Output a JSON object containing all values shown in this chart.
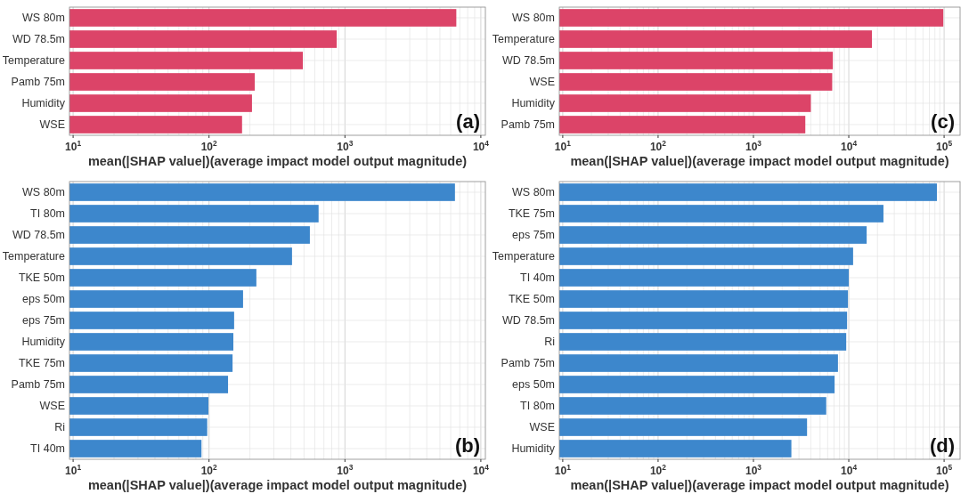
{
  "chart_data": [
    {
      "type": "bar",
      "orientation": "horizontal",
      "log": "x",
      "grid": true,
      "categories": [
        "WS 80m",
        "WD 78.5m",
        "Temperature",
        "Pamb 75m",
        "Humidity",
        "WSE"
      ],
      "values": [
        6600,
        870,
        490,
        217,
        207,
        175
      ],
      "color": "#dc4468",
      "xlim": [
        9.4,
        10800
      ],
      "xticks": [
        {
          "value": 10,
          "label": "10$^{1}$"
        },
        {
          "value": 100,
          "label": "10$^{2}$"
        },
        {
          "value": 1000,
          "label": "10$^{3}$"
        },
        {
          "value": 10000,
          "label": "10$^{4}$"
        }
      ],
      "xlabel": "mean(|SHAP value|)(average impact model output magnitude)",
      "annotations": [
        "(a)"
      ]
    },
    {
      "type": "bar",
      "orientation": "horizontal",
      "log": "x",
      "grid": true,
      "categories": [
        "WS 80m",
        "Temperature",
        "WD 78.5m",
        "WSE",
        "Humidity",
        "Pamb 75m"
      ],
      "values": [
        98000,
        17500,
        6800,
        6700,
        4000,
        3500
      ],
      "color": "#dc4468",
      "xlim": [
        9.2,
        147000
      ],
      "xticks": [
        {
          "value": 10,
          "label": "10$^{1}$"
        },
        {
          "value": 100,
          "label": "10$^{2}$"
        },
        {
          "value": 1000,
          "label": "10$^{3}$"
        },
        {
          "value": 10000,
          "label": "10$^{4}$"
        },
        {
          "value": 100000,
          "label": "10$^{5}$"
        }
      ],
      "xlabel": "mean(|SHAP value|)(average impact model output magnitude)",
      "annotations": [
        "(c)"
      ]
    },
    {
      "type": "bar",
      "orientation": "horizontal",
      "log": "x",
      "grid": true,
      "categories": [
        "WS 80m",
        "TI 80m",
        "WD 78.5m",
        "Temperature",
        "TKE 50m",
        "eps 50m",
        "eps 75m",
        "Humidity",
        "TKE 75m",
        "Pamb 75m",
        "WSE",
        "Ri",
        "TI 40m"
      ],
      "values": [
        6450,
        640,
        552,
        408,
        223,
        178,
        153,
        151,
        149,
        138,
        99,
        97,
        88
      ],
      "color": "#3d87cc",
      "xlim": [
        9.4,
        10800
      ],
      "xticks": [
        {
          "value": 10,
          "label": "10$^{1}$"
        },
        {
          "value": 100,
          "label": "10$^{2}$"
        },
        {
          "value": 1000,
          "label": "10$^{3}$"
        },
        {
          "value": 10000,
          "label": "10$^{4}$"
        }
      ],
      "xlabel": "mean(|SHAP value|)(average impact model output magnitude)",
      "annotations": [
        "(b)"
      ]
    },
    {
      "type": "bar",
      "orientation": "horizontal",
      "log": "x",
      "grid": true,
      "categories": [
        "WS 80m",
        "TKE 75m",
        "eps 75m",
        "Temperature",
        "TI 40m",
        "TKE 50m",
        "WD 78.5m",
        "Ri",
        "Pamb 75m",
        "eps 50m",
        "TI 80m",
        "WSE",
        "Humidity"
      ],
      "values": [
        84000,
        23100,
        15400,
        11100,
        10000,
        9800,
        9600,
        9400,
        7700,
        7100,
        5800,
        3650,
        2500
      ],
      "color": "#3d87cc",
      "xlim": [
        9.2,
        147000
      ],
      "xticks": [
        {
          "value": 10,
          "label": "10$^{1}$"
        },
        {
          "value": 100,
          "label": "10$^{2}$"
        },
        {
          "value": 1000,
          "label": "10$^{3}$"
        },
        {
          "value": 10000,
          "label": "10$^{4}$"
        },
        {
          "value": 100000,
          "label": "10$^{5}$"
        }
      ],
      "xlabel": "mean(|SHAP value|)(average impact model output magnitude)",
      "annotations": [
        "(d)"
      ]
    }
  ]
}
